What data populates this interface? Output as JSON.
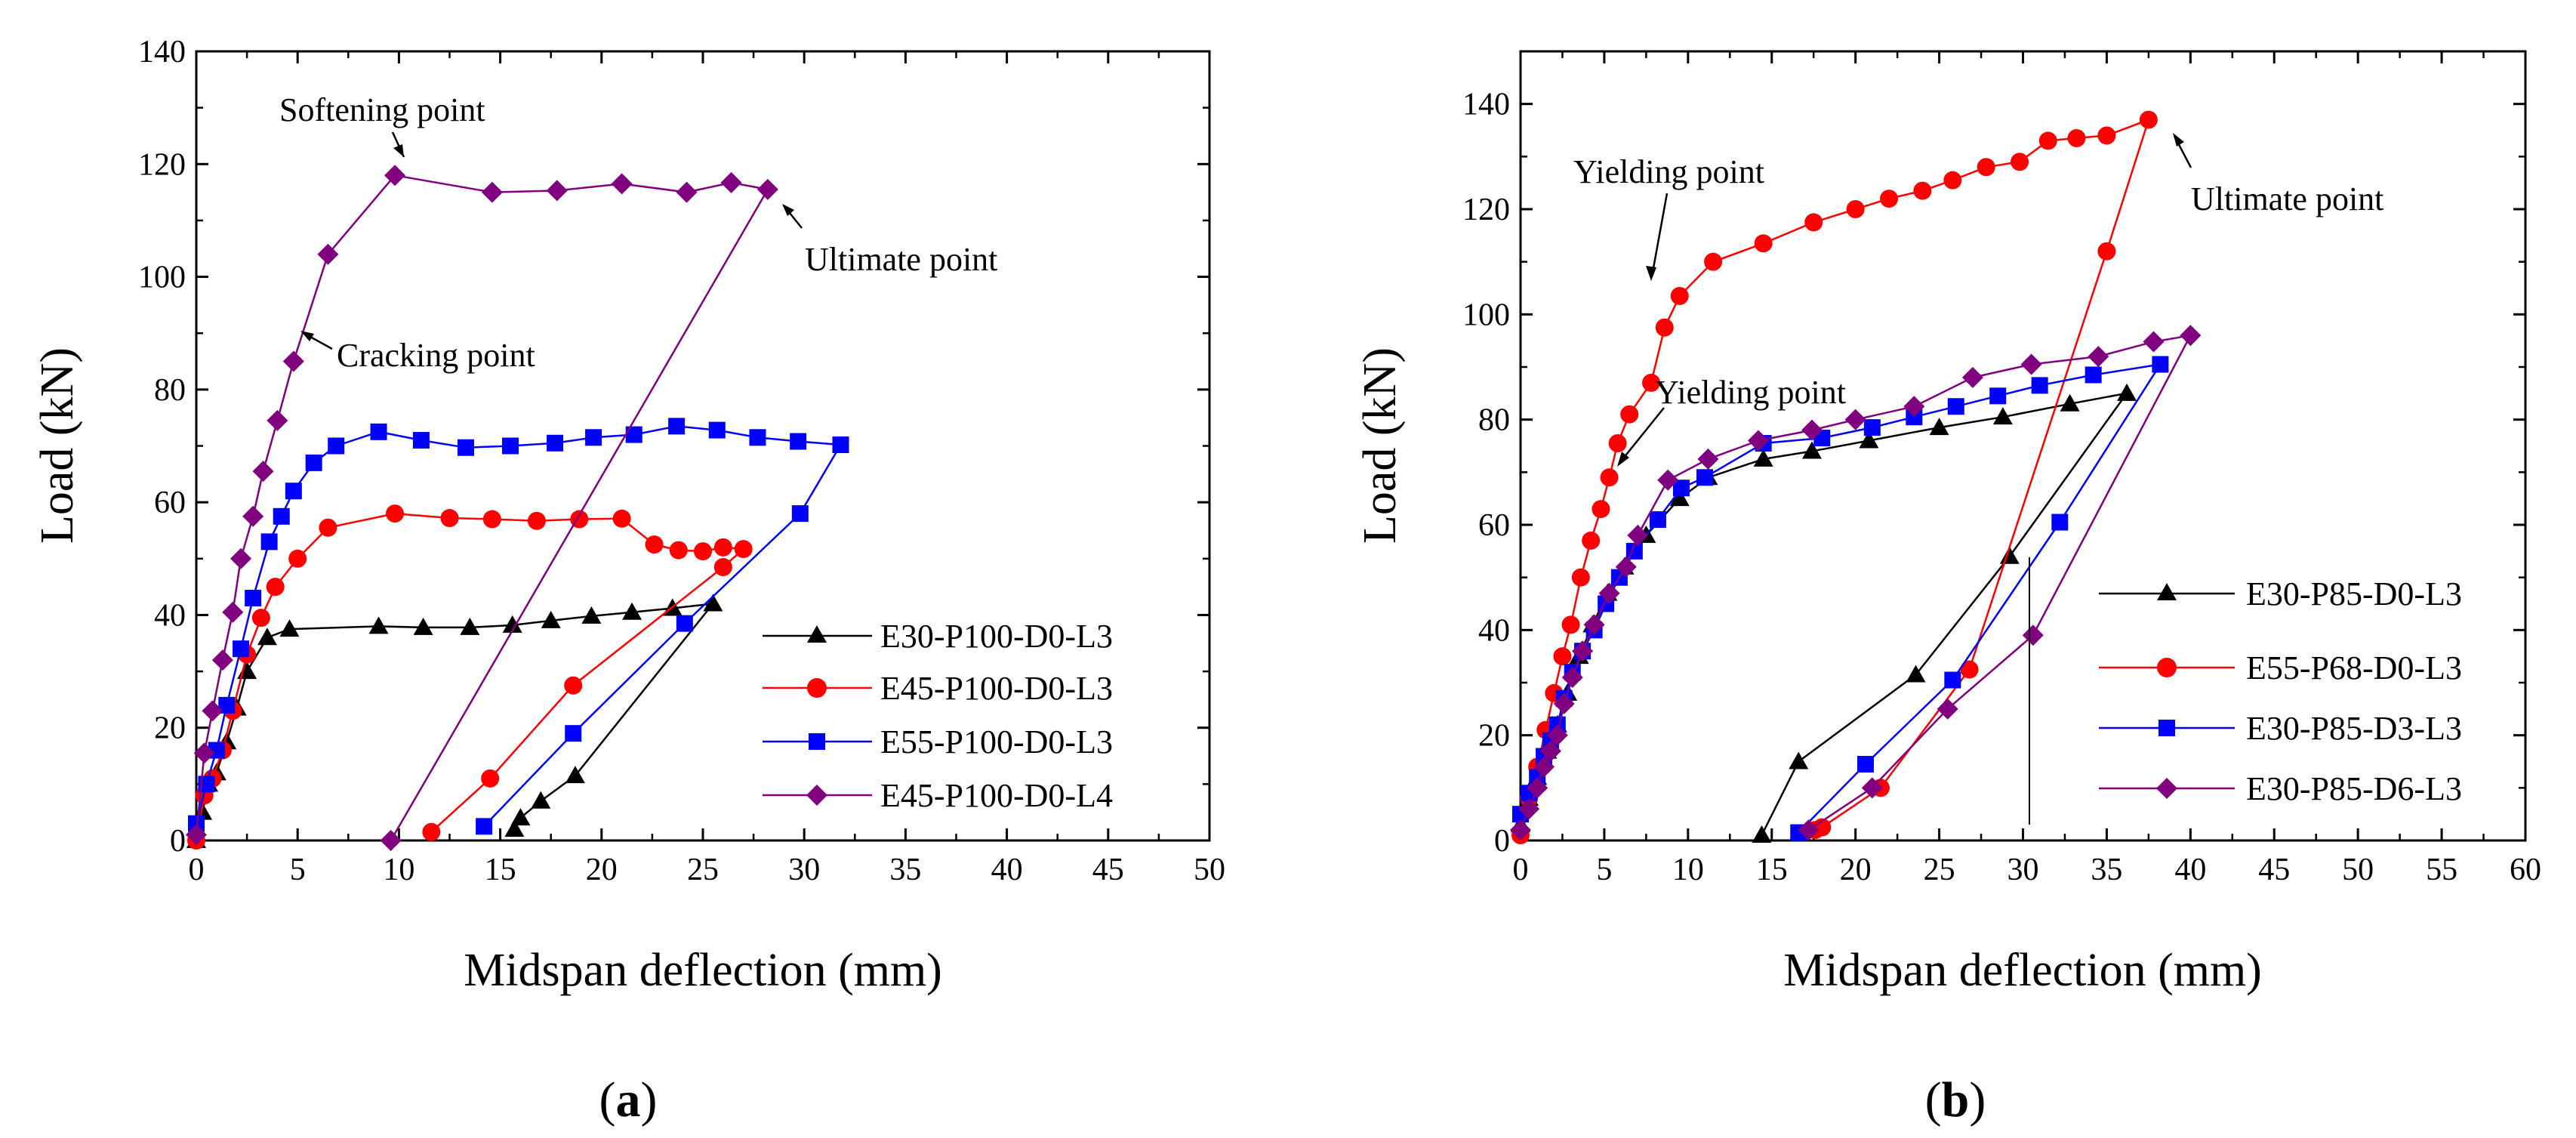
{
  "chart_data": [
    {
      "panel_label": "(a)",
      "type": "line",
      "xlabel": "Midspan deflection (mm)",
      "ylabel": "Load (kN)",
      "xlim": [
        0,
        50
      ],
      "ylim": [
        0,
        140
      ],
      "xticks": [
        0,
        5,
        10,
        15,
        20,
        25,
        30,
        35,
        40,
        45,
        50
      ],
      "yticks": [
        0,
        20,
        40,
        60,
        80,
        100,
        120,
        140
      ],
      "grid": false,
      "legend_position": "bottom-right",
      "series": [
        {
          "name": "E30-P100-D0-L3",
          "color": "#000000",
          "marker": "triangle",
          "x": [
            0,
            0.3,
            0.6,
            1.0,
            1.5,
            2.0,
            2.5,
            3.5,
            4.6,
            9.0,
            11.2,
            13.5,
            15.6,
            17.5,
            19.5,
            21.5,
            23.5,
            25.5,
            18.7,
            17.0,
            16.0,
            15.7
          ],
          "y": [
            0,
            5,
            10,
            12,
            17.5,
            23.5,
            30,
            36,
            37.5,
            38,
            37.8,
            37.8,
            38.2,
            39,
            39.8,
            40.5,
            41.2,
            42,
            11.5,
            7,
            4,
            2
          ]
        },
        {
          "name": "E45-P100-D0-L3",
          "color": "#ff0000",
          "marker": "circle",
          "x": [
            0,
            0.4,
            0.8,
            1.3,
            1.8,
            2.5,
            3.2,
            3.9,
            5.0,
            6.5,
            9.8,
            12.5,
            14.6,
            16.8,
            18.9,
            21.0,
            22.6,
            23.8,
            25.0,
            26.0,
            27.0,
            26.0,
            18.6,
            14.5,
            11.6
          ],
          "y": [
            0,
            8,
            11,
            16,
            23,
            33,
            39.5,
            45,
            50,
            55.5,
            58,
            57.2,
            57,
            56.7,
            57,
            57.1,
            52.5,
            51.5,
            51.3,
            52,
            51.7,
            48.5,
            27.5,
            11,
            1.5
          ]
        },
        {
          "name": "E55-P100-D0-L3",
          "color": "#0000ff",
          "marker": "square",
          "x": [
            0,
            0.5,
            1.0,
            1.5,
            2.2,
            2.8,
            3.6,
            4.2,
            4.8,
            5.8,
            6.9,
            9.0,
            11.1,
            13.3,
            15.5,
            17.7,
            19.6,
            21.6,
            23.7,
            25.7,
            27.7,
            29.7,
            31.8,
            29.8,
            24.1,
            18.6,
            14.2
          ],
          "y": [
            3,
            10,
            16,
            24,
            34,
            43,
            53,
            57.5,
            62,
            67,
            70,
            72.5,
            71,
            69.7,
            70,
            70.5,
            71.5,
            72,
            73.5,
            72.8,
            71.5,
            70.8,
            70.2,
            58,
            38.5,
            19,
            2.5
          ]
        },
        {
          "name": "E45-P100-D0-L4",
          "color": "#800080",
          "marker": "diamond",
          "x": [
            0,
            0.4,
            0.8,
            1.3,
            1.8,
            2.2,
            2.8,
            3.3,
            4.0,
            4.8,
            6.5,
            9.8,
            14.6,
            17.8,
            21.0,
            24.2,
            26.4,
            28.2,
            9.6
          ],
          "y": [
            1,
            15.5,
            23,
            32,
            40.5,
            50,
            57.5,
            65.5,
            74.5,
            85,
            104,
            118,
            115,
            115.3,
            116.5,
            115,
            116.7,
            115.5,
            0
          ]
        }
      ],
      "annotations": [
        {
          "text": "Softening point",
          "x": 9.9,
          "y": 118.2
        },
        {
          "text": "Cracking point",
          "x": 4.8,
          "y": 91
        },
        {
          "text": "Ultimate point",
          "x": 28.2,
          "y": 115.5
        }
      ]
    },
    {
      "panel_label": "(b)",
      "type": "line",
      "xlabel": "Midspan deflection (mm)",
      "ylabel": "Load (kN)",
      "xlim": [
        0,
        60
      ],
      "ylim": [
        0,
        150
      ],
      "xticks": [
        0,
        5,
        10,
        15,
        20,
        25,
        30,
        35,
        40,
        45,
        50,
        55,
        60
      ],
      "yticks": [
        0,
        20,
        40,
        60,
        80,
        100,
        120,
        140
      ],
      "grid": false,
      "legend_position": "bottom-right",
      "series": [
        {
          "name": "E30-P85-D0-L3",
          "color": "#000000",
          "marker": "triangle",
          "x": [
            0,
            0.5,
            1.0,
            1.6,
            2.2,
            2.8,
            3.5,
            4.3,
            5.2,
            6.2,
            7.5,
            9.5,
            11.2,
            14.5,
            17.4,
            20.8,
            25.0,
            28.8,
            32.8,
            36.2,
            29.2,
            23.6,
            16.6,
            14.4
          ],
          "y": [
            3,
            8,
            12,
            17,
            22,
            28,
            35,
            41,
            47,
            52,
            58,
            65,
            69,
            72.5,
            74,
            76,
            78.5,
            80.5,
            83,
            85,
            54,
            31.5,
            15,
            1
          ]
        },
        {
          "name": "E55-P68-D0-L3",
          "color": "#ff0000",
          "marker": "circle",
          "x": [
            0,
            0.5,
            1.0,
            1.5,
            2.0,
            2.5,
            3.0,
            3.6,
            4.2,
            4.8,
            5.3,
            5.8,
            6.5,
            7.8,
            8.6,
            9.5,
            11.5,
            14.5,
            17.5,
            20.0,
            22.0,
            24.0,
            25.8,
            27.8,
            29.8,
            31.5,
            33.2,
            35.0,
            37.5,
            35.0,
            26.8,
            21.5,
            18.0,
            17.6
          ],
          "y": [
            1,
            8,
            14,
            21,
            28,
            35,
            41,
            50,
            57,
            63,
            69,
            75.5,
            81,
            87,
            97.5,
            103.5,
            110,
            113.5,
            117.5,
            120,
            122,
            123.5,
            125.5,
            128,
            129,
            133,
            133.5,
            134,
            137,
            112,
            32.5,
            10,
            2.5,
            2
          ]
        },
        {
          "name": "E30-P85-D3-L3",
          "color": "#0000ff",
          "marker": "square",
          "x": [
            0,
            0.5,
            1.0,
            1.4,
            1.8,
            2.2,
            2.6,
            3.1,
            3.7,
            4.4,
            5.1,
            5.9,
            6.8,
            8.2,
            9.6,
            11.0,
            14.5,
            18.0,
            21.0,
            23.5,
            26.0,
            28.5,
            31.0,
            34.2,
            38.2,
            32.2,
            25.8,
            20.6,
            16.6
          ],
          "y": [
            5,
            9,
            12,
            16,
            19,
            22,
            27,
            32,
            36,
            40,
            45,
            50,
            55,
            61,
            67,
            69,
            75.5,
            76.5,
            78.5,
            80.5,
            82.5,
            84.5,
            86.5,
            88.5,
            90.5,
            60.5,
            30.5,
            14.5,
            1.5
          ]
        },
        {
          "name": "E30-P85-D6-L3",
          "color": "#800080",
          "marker": "diamond",
          "x": [
            0,
            0.5,
            1.0,
            1.4,
            1.8,
            2.2,
            2.6,
            3.1,
            3.7,
            4.4,
            5.3,
            6.3,
            7.0,
            8.8,
            11.2,
            14.2,
            17.4,
            20.0,
            23.5,
            27.0,
            30.5,
            34.5,
            37.8,
            40.0,
            30.6,
            25.5,
            21.0,
            17.2
          ],
          "y": [
            2,
            6,
            10,
            14,
            17,
            20,
            26,
            31,
            36,
            41,
            47,
            52,
            58,
            68.5,
            72.5,
            76,
            78,
            80,
            82.5,
            88,
            90.5,
            92,
            94.8,
            96,
            39,
            25,
            10,
            2
          ]
        }
      ],
      "annotations": [
        {
          "text": "Yielding point",
          "x": 9.5,
          "y": 103.5
        },
        {
          "text": "Yielding point",
          "x": 5.0,
          "y": 70.0
        },
        {
          "text": "Ultimate point",
          "x": 37.5,
          "y": 137
        }
      ]
    }
  ]
}
